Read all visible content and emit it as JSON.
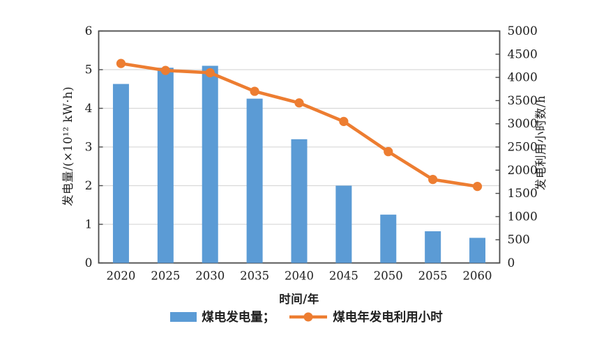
{
  "chart_data": {
    "type": "combo-bar-line",
    "categories": [
      "2020",
      "2025",
      "2030",
      "2035",
      "2040",
      "2045",
      "2050",
      "2055",
      "2060"
    ],
    "series": [
      {
        "name": "煤电发电量",
        "type": "bar",
        "y_axis": "left",
        "color": "#5B9BD5",
        "values": [
          4.63,
          5.05,
          5.1,
          4.25,
          3.2,
          2.0,
          1.25,
          0.82,
          0.65
        ]
      },
      {
        "name": "煤电年发电利用小时",
        "type": "line",
        "y_axis": "right",
        "color": "#ED7D31",
        "values": [
          4300,
          4150,
          4100,
          3700,
          3450,
          3050,
          2400,
          1800,
          1650
        ]
      }
    ],
    "xlabel": "时间/年",
    "left_axis": {
      "label": "发电量/(×10¹² kW·h)",
      "min": 0,
      "max": 6,
      "ticks": [
        0,
        1,
        2,
        3,
        4,
        5,
        6
      ]
    },
    "right_axis": {
      "label": "发电利用小时数/h",
      "min": 0,
      "max": 5000,
      "ticks": [
        0,
        500,
        1000,
        1500,
        2000,
        2500,
        3000,
        3500,
        4000,
        4500,
        5000
      ]
    },
    "grid": true,
    "legend_position": "bottom",
    "legend": [
      {
        "swatch": "bar",
        "label": "煤电发电量；",
        "color": "#5B9BD5"
      },
      {
        "swatch": "line-dot",
        "label": "煤电年发电利用小时",
        "color": "#ED7D31"
      }
    ],
    "style_colors": {
      "frame": "#4a4a4a",
      "grid": "#d9d9d9",
      "text": "#1f1f1f",
      "background": "#ffffff"
    }
  }
}
